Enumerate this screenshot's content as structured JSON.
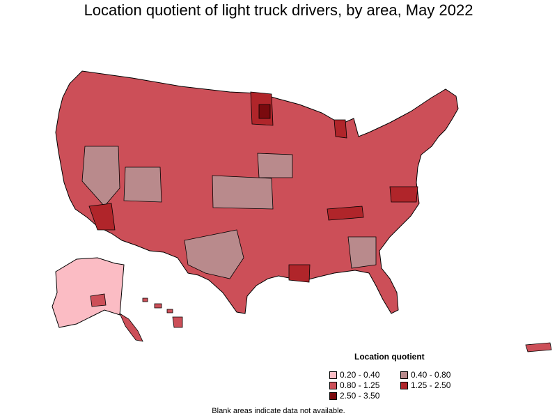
{
  "title": "Location quotient of light truck drivers, by area, May 2022",
  "legend": {
    "title": "Location quotient",
    "items": [
      {
        "label": "0.20 - 0.40",
        "color": "#fbbcc4"
      },
      {
        "label": "0.40 - 0.80",
        "color": "#b98a8c"
      },
      {
        "label": "0.80 - 1.25",
        "color": "#cc4f58"
      },
      {
        "label": "1.25 - 2.50",
        "color": "#b0252a"
      },
      {
        "label": "2.50 - 3.50",
        "color": "#7a0a0e"
      }
    ]
  },
  "footnote": "Blank areas indicate data not available.",
  "regions": {
    "alaska": "0.20 - 0.40",
    "nevada": "0.40 - 0.80",
    "kansas": "0.40 - 0.80",
    "west_texas": "0.40 - 0.80",
    "arizona_central": "1.25 - 2.50",
    "minnesota_north": "1.25 - 2.50",
    "michigan_north": "1.25 - 2.50"
  }
}
